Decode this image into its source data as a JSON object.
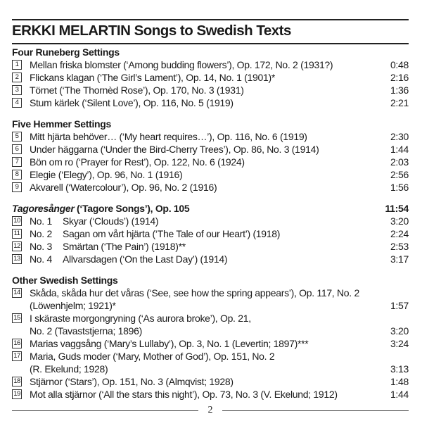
{
  "title": "ERKKI MELARTIN Songs to Swedish Texts",
  "page_number": "2",
  "sections": [
    {
      "heading": "Four Runeberg Settings",
      "heading_italic": "",
      "total": "",
      "tracks": [
        {
          "num": "1",
          "sub": "",
          "lines": [
            "Mellan friska blomster (‘Among budding flowers’), Op. 172, No. 2 (1931?)"
          ],
          "duration": "0:48"
        },
        {
          "num": "2",
          "sub": "",
          "lines": [
            "Flickans klagan (‘The Girl’s Lament’), Op. 14, No. 1 (1901)*"
          ],
          "duration": "2:16"
        },
        {
          "num": "3",
          "sub": "",
          "lines": [
            "Törnet (‘The Thornèd Rose’), Op. 170, No. 3 (1931)"
          ],
          "duration": "1:36"
        },
        {
          "num": "4",
          "sub": "",
          "lines": [
            "Stum kärlek (‘Silent Love’), Op. 116, No. 5 (1919)"
          ],
          "duration": "2:21"
        }
      ]
    },
    {
      "heading": "Five Hemmer Settings",
      "heading_italic": "",
      "total": "",
      "tracks": [
        {
          "num": "5",
          "sub": "",
          "lines": [
            "Mitt hjärta behöver… (‘My heart requires…’), Op. 116, No. 6 (1919)"
          ],
          "duration": "2:30"
        },
        {
          "num": "6",
          "sub": "",
          "lines": [
            "Under häggarna (‘Under the Bird-Cherry Trees’), Op. 86, No. 3 (1914)"
          ],
          "duration": "1:44"
        },
        {
          "num": "7",
          "sub": "",
          "lines": [
            "Bön om ro (‘Prayer for Rest’), Op. 122, No. 6 (1924)"
          ],
          "duration": "2:03"
        },
        {
          "num": "8",
          "sub": "",
          "lines": [
            "Elegie (‘Elegy’), Op. 96, No. 1 (1916)"
          ],
          "duration": "2:56"
        },
        {
          "num": "9",
          "sub": "",
          "lines": [
            "Akvarell (‘Watercolour’), Op. 96, No. 2 (1916)"
          ],
          "duration": "1:56"
        }
      ]
    },
    {
      "heading_italic": "Tagoresånger",
      "heading": " (‘Tagore Songs’), Op. 105",
      "total": "11:54",
      "tracks": [
        {
          "num": "10",
          "sub": "No. 1",
          "lines": [
            "Skyar (‘Clouds’) (1914)"
          ],
          "duration": "3:20"
        },
        {
          "num": "11",
          "sub": "No. 2",
          "lines": [
            "Sagan om vårt hjärta (‘The Tale of our Heart’) (1918)"
          ],
          "duration": "2:24"
        },
        {
          "num": "12",
          "sub": "No. 3",
          "lines": [
            "Smärtan (‘The Pain’) (1918)**"
          ],
          "duration": "2:53"
        },
        {
          "num": "13",
          "sub": "No. 4",
          "lines": [
            "Allvarsdagen (‘On the Last Day’) (1914)"
          ],
          "duration": "3:17"
        }
      ]
    },
    {
      "heading": "Other Swedish Settings",
      "heading_italic": "",
      "total": "",
      "tracks": [
        {
          "num": "14",
          "sub": "",
          "lines": [
            "Skåda, skåda hur det våras (‘See, see how the spring appears’), Op. 117, No. 2",
            "(Löwenhjelm; 1921)*"
          ],
          "duration": "1:57"
        },
        {
          "num": "15",
          "sub": "",
          "lines": [
            "I skäraste morgongryning (‘As aurora broke’), Op. 21,",
            "No. 2 (Tavaststjerna; 1896)"
          ],
          "duration": "3:20"
        },
        {
          "num": "16",
          "sub": "",
          "lines": [
            "Marias vaggsång (‘Mary’s Lullaby’), Op. 3, No. 1 (Levertin; 1897)***"
          ],
          "duration": "3:24"
        },
        {
          "num": "17",
          "sub": "",
          "lines": [
            "Maria, Guds moder (‘Mary, Mother of God’), Op. 151, No. 2",
            "(R. Ekelund; 1928)"
          ],
          "duration": "3:13"
        },
        {
          "num": "18",
          "sub": "",
          "lines": [
            "Stjärnor (‘Stars’), Op. 151, No. 3 (Almqvist; 1928)"
          ],
          "duration": "1:48"
        },
        {
          "num": "19",
          "sub": "",
          "lines": [
            "Mot alla stjärnor (‘All the stars this night’), Op. 73, No. 3 (V. Ekelund; 1912)"
          ],
          "duration": "1:44"
        }
      ]
    }
  ]
}
